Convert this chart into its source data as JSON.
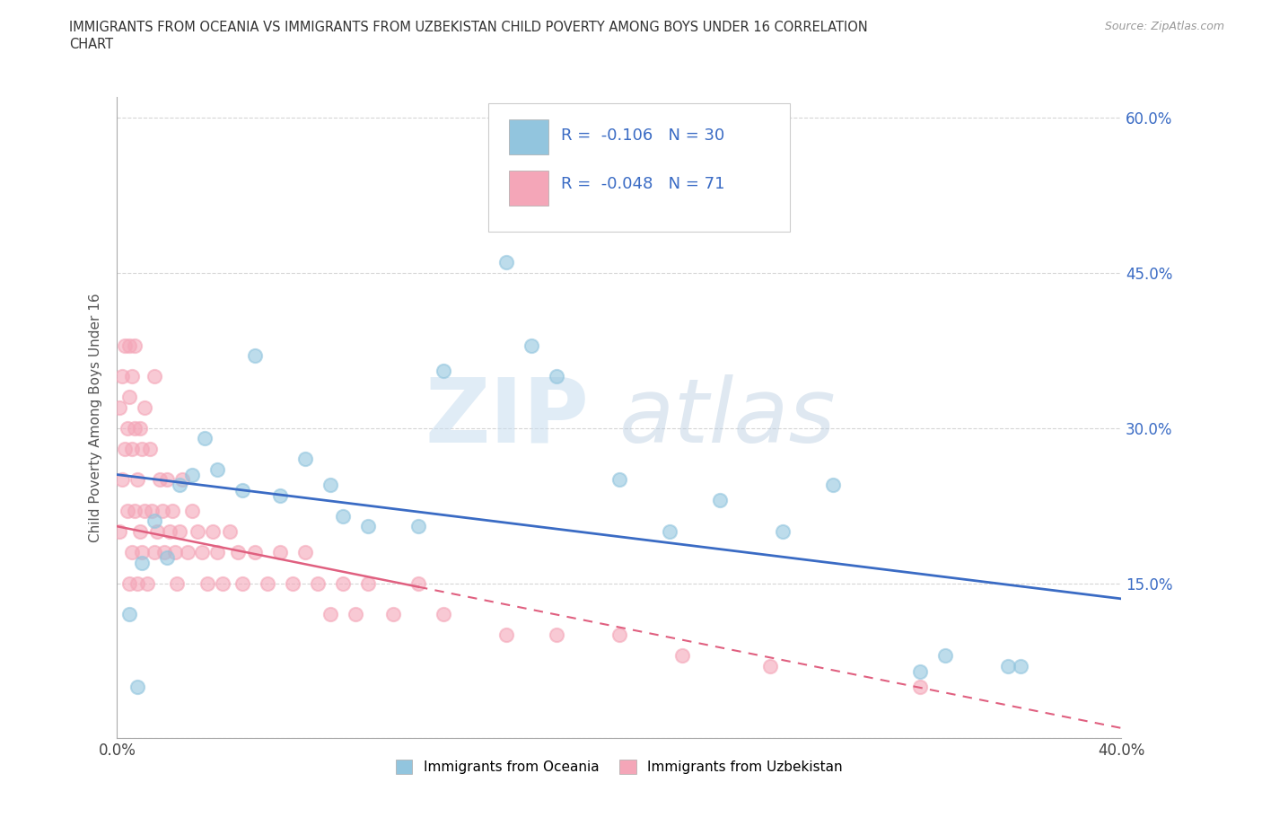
{
  "title_line1": "IMMIGRANTS FROM OCEANIA VS IMMIGRANTS FROM UZBEKISTAN CHILD POVERTY AMONG BOYS UNDER 16 CORRELATION",
  "title_line2": "CHART",
  "source": "Source: ZipAtlas.com",
  "ylabel": "Child Poverty Among Boys Under 16",
  "xlim": [
    0,
    0.4
  ],
  "ylim": [
    0,
    0.62
  ],
  "xticks": [
    0.0,
    0.05,
    0.1,
    0.15,
    0.2,
    0.25,
    0.3,
    0.35,
    0.4
  ],
  "yticks": [
    0.0,
    0.15,
    0.3,
    0.45,
    0.6
  ],
  "oceania_color": "#92C5DE",
  "uzbekistan_color": "#F4A6B8",
  "trend_oceania_color": "#3A6BC4",
  "trend_uzbekistan_color": "#E06080",
  "R_oceania": -0.106,
  "N_oceania": 30,
  "R_uzbekistan": -0.048,
  "N_uzbekistan": 71,
  "oceania_x": [
    0.005,
    0.008,
    0.01,
    0.015,
    0.02,
    0.025,
    0.03,
    0.035,
    0.04,
    0.05,
    0.055,
    0.065,
    0.075,
    0.085,
    0.09,
    0.1,
    0.12,
    0.13,
    0.155,
    0.165,
    0.175,
    0.2,
    0.22,
    0.24,
    0.265,
    0.285,
    0.32,
    0.33,
    0.355,
    0.36
  ],
  "oceania_y": [
    0.12,
    0.05,
    0.17,
    0.21,
    0.175,
    0.245,
    0.255,
    0.29,
    0.26,
    0.24,
    0.37,
    0.235,
    0.27,
    0.245,
    0.215,
    0.205,
    0.205,
    0.355,
    0.46,
    0.38,
    0.35,
    0.25,
    0.2,
    0.23,
    0.2,
    0.245,
    0.065,
    0.08,
    0.07,
    0.07
  ],
  "uzbekistan_x": [
    0.001,
    0.001,
    0.002,
    0.002,
    0.003,
    0.003,
    0.004,
    0.004,
    0.005,
    0.005,
    0.005,
    0.006,
    0.006,
    0.006,
    0.007,
    0.007,
    0.007,
    0.008,
    0.008,
    0.009,
    0.009,
    0.01,
    0.01,
    0.011,
    0.011,
    0.012,
    0.013,
    0.014,
    0.015,
    0.015,
    0.016,
    0.017,
    0.018,
    0.019,
    0.02,
    0.021,
    0.022,
    0.023,
    0.024,
    0.025,
    0.026,
    0.028,
    0.03,
    0.032,
    0.034,
    0.036,
    0.038,
    0.04,
    0.042,
    0.045,
    0.048,
    0.05,
    0.055,
    0.06,
    0.065,
    0.07,
    0.075,
    0.08,
    0.085,
    0.09,
    0.095,
    0.1,
    0.11,
    0.12,
    0.13,
    0.155,
    0.175,
    0.2,
    0.225,
    0.26,
    0.32
  ],
  "uzbekistan_y": [
    0.2,
    0.32,
    0.25,
    0.35,
    0.28,
    0.38,
    0.22,
    0.3,
    0.15,
    0.33,
    0.38,
    0.18,
    0.28,
    0.35,
    0.22,
    0.3,
    0.38,
    0.15,
    0.25,
    0.2,
    0.3,
    0.18,
    0.28,
    0.22,
    0.32,
    0.15,
    0.28,
    0.22,
    0.18,
    0.35,
    0.2,
    0.25,
    0.22,
    0.18,
    0.25,
    0.2,
    0.22,
    0.18,
    0.15,
    0.2,
    0.25,
    0.18,
    0.22,
    0.2,
    0.18,
    0.15,
    0.2,
    0.18,
    0.15,
    0.2,
    0.18,
    0.15,
    0.18,
    0.15,
    0.18,
    0.15,
    0.18,
    0.15,
    0.12,
    0.15,
    0.12,
    0.15,
    0.12,
    0.15,
    0.12,
    0.1,
    0.1,
    0.1,
    0.08,
    0.07,
    0.05
  ],
  "watermark_zip": "ZIP",
  "watermark_atlas": "atlas",
  "background_color": "#ffffff",
  "legend_box_color": "#aaaaaa",
  "legend_text_color": "#3A6BC4",
  "grid_color": "#cccccc"
}
